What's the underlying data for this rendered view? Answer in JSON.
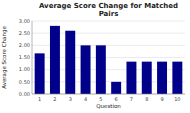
{
  "chart_data": {
    "type": "bar",
    "title": "Average Score Change for Matched\nPairs",
    "xlabel": "Question",
    "ylabel": "Average Score Change",
    "categories": [
      1,
      2,
      3,
      4,
      5,
      6,
      7,
      8,
      9,
      10
    ],
    "values": [
      1.67,
      2.8,
      2.6,
      2.0,
      2.0,
      0.5,
      1.33,
      1.33,
      1.33,
      1.33
    ],
    "color": "#00008B",
    "ylim": [
      0,
      3.0
    ],
    "yticks": [
      {
        "value": 0.0,
        "label": "0.00"
      },
      {
        "value": 0.5,
        "label": "0.50"
      },
      {
        "value": 1.0,
        "label": "1.00"
      },
      {
        "value": 1.5,
        "label": "1.50"
      },
      {
        "value": 2.0,
        "label": "2.00"
      },
      {
        "value": 2.5,
        "label": "2.50"
      },
      {
        "value": 3.0,
        "label": "3.00"
      }
    ],
    "grid": true
  }
}
